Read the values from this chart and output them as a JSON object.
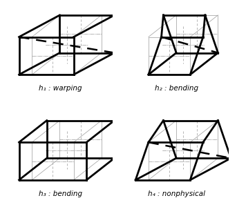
{
  "labels": [
    "h₁ : warping",
    "h₂ : bending",
    "h₃ : bending",
    "h₄ : nonphysical"
  ],
  "bg": "#ffffff",
  "lc": "#000000",
  "gc": "#aaaaaa"
}
